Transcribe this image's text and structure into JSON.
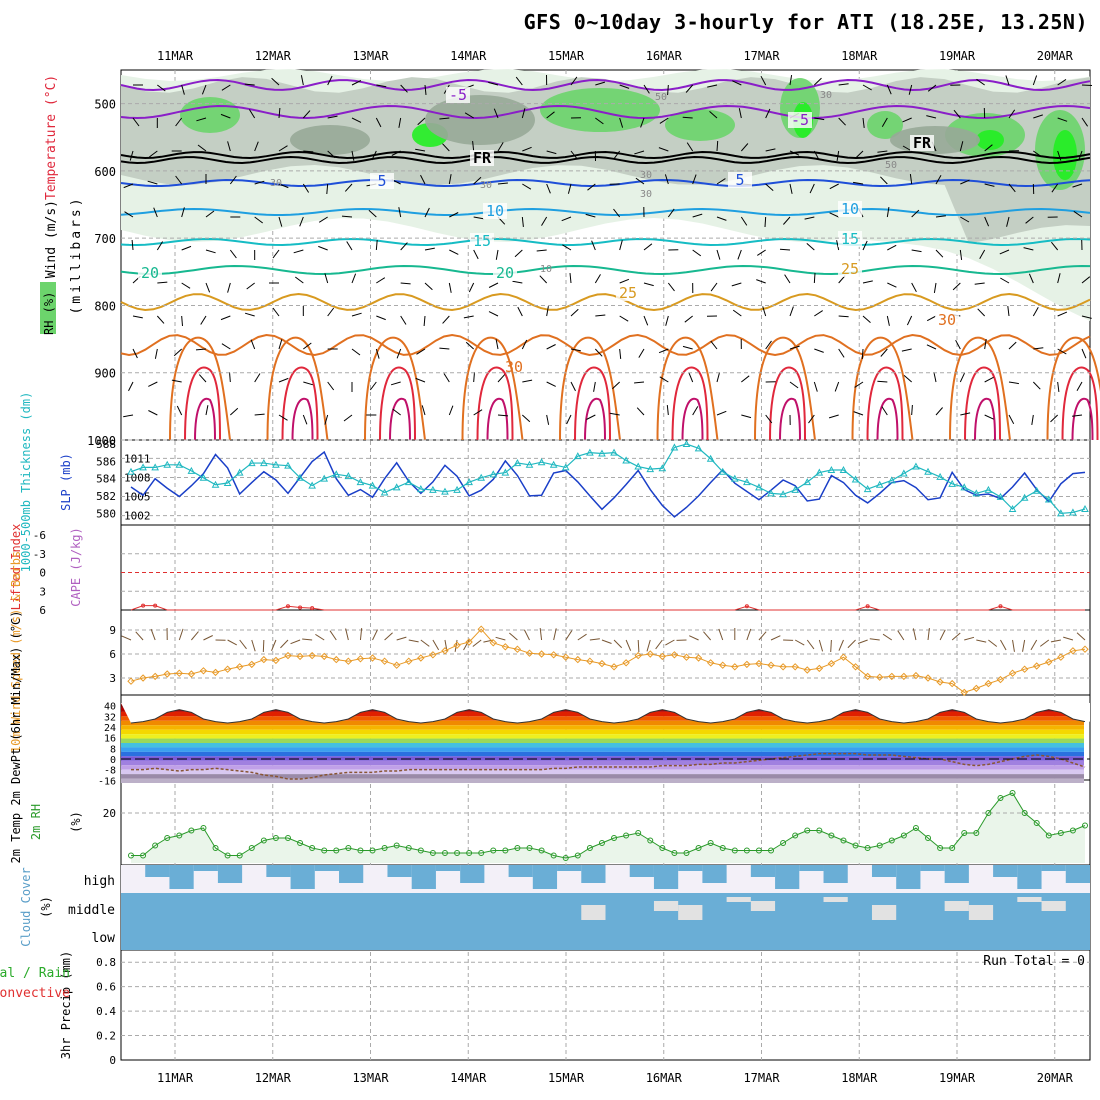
{
  "title": "GFS 0~10day 3-hourly for ATI (18.25E, 13.25N)",
  "colors": {
    "grid": "#aaaaaa",
    "rh_light": "#e6f2e6",
    "rh_mid": "#c4cfc4",
    "rh_dark": "#98a898",
    "rh_green": "#6cd46c",
    "rh_bright": "#22ee22",
    "temp_m5": "#8a1ec8",
    "temp_0": "#000000",
    "temp_5": "#1f4fd8",
    "temp_10": "#1f9fe0",
    "temp_15": "#16bcc4",
    "temp_20": "#17b890",
    "temp_25": "#d89a20",
    "temp_30": "#e07020",
    "temp_35": "#e0283c",
    "temp_40": "#c0106a",
    "slp": "#1a3fc8",
    "thickness": "#20b8c0",
    "lifted": "#e03030",
    "wind10": "#e89a28",
    "rh2m": "#2a9a2a",
    "rh2m_fill": "#eaf5ea",
    "cloud": "#6aaed6",
    "cloud_bg": "#f3f0f8"
  },
  "chart_data": [
    {
      "type": "contour",
      "name": "vertical_profile",
      "ylabel": "Wind (m/s)",
      "ylabel2": "Temperature (°C)",
      "ylabel3": "RH (%)",
      "ylabel4": "(millibars)",
      "y_ticks": [
        "500",
        "600",
        "700",
        "800",
        "900",
        "1000"
      ],
      "ylim": [
        450,
        1000
      ],
      "x_labels": [
        "11MAR",
        "12MAR",
        "13MAR",
        "14MAR",
        "15MAR",
        "16MAR",
        "17MAR",
        "18MAR",
        "19MAR",
        "20MAR"
      ],
      "contour_labels": [
        "-5",
        "-5",
        "FR",
        "FR",
        "5",
        "5",
        "10",
        "10",
        "15",
        "15",
        "20",
        "20",
        "25",
        "25",
        "30"
      ],
      "rh_labels": [
        "30",
        "30",
        "30",
        "30",
        "50",
        "50",
        "30",
        "10"
      ]
    },
    {
      "type": "line",
      "name": "slp_thickness",
      "ylabel_left": "1000-500mb Thickness (dm)",
      "ylabel_right": "SLP (mb)",
      "left_ticks": [
        "588",
        "586",
        "584",
        "582",
        "580"
      ],
      "right_ticks": [
        "1011",
        "1008",
        "1005",
        "1002"
      ],
      "series": [
        {
          "name": "SLP",
          "values": [
            1006.5,
            1005.2,
            1007.8,
            1006.3,
            1005.0,
            1006.7,
            1008.6,
            1011.6,
            1009.5,
            1005.4,
            1007.2,
            1008.9,
            1007.6,
            1005.5,
            1008.0,
            1010.5,
            1012.0,
            1007.8,
            1005.2,
            1006.1,
            1004.9,
            1007.8,
            1010.3,
            1007.4,
            1005.5,
            1007.3,
            1009.9,
            1008.2,
            1005.1,
            1006.0,
            1007.7,
            1010.6,
            1008.3,
            1005.1,
            1005.2,
            1008.7,
            1009.1,
            1007.3,
            1005.1,
            1003.0,
            1004.8,
            1006.9,
            1009.1,
            1006.1,
            1003.6,
            1001.8,
            1003.3,
            1005.1,
            1007.2,
            1009.2,
            1007.1,
            1005.8,
            1004.5,
            1006.0,
            1007.6,
            1006.7,
            1004.3,
            1004.6,
            1008.3,
            1007.2,
            1005.2,
            1004.0,
            1005.5,
            1007.2,
            1007.5,
            1006.4,
            1004.5,
            1004.8,
            1008.8,
            1006.1,
            1005.2,
            1005.4,
            1004.7,
            1006.5,
            1008.7,
            1006.1,
            1004.2,
            1007.0,
            1008.6,
            1008.8
          ]
        },
        {
          "name": "Thickness",
          "values": [
            584.8,
            585.3,
            585.3,
            585.6,
            585.6,
            584.9,
            584.1,
            583.3,
            583.5,
            584.7,
            585.8,
            585.8,
            585.6,
            585.5,
            584.1,
            583.2,
            584.0,
            584.5,
            584.3,
            583.6,
            583.2,
            582.4,
            583.0,
            583.6,
            582.8,
            582.7,
            582.5,
            582.7,
            583.6,
            584.1,
            584.5,
            584.7,
            585.8,
            585.6,
            585.9,
            585.6,
            585.3,
            586.6,
            587.0,
            586.9,
            587.0,
            586.1,
            585.4,
            585.1,
            585.2,
            587.6,
            588.0,
            587.5,
            586.3,
            584.8,
            584.0,
            583.6,
            583.0,
            582.3,
            582.2,
            582.7,
            583.6,
            584.7,
            585.0,
            585.0,
            583.9,
            582.8,
            583.3,
            583.8,
            584.6,
            585.4,
            584.8,
            584.2,
            583.4,
            583.0,
            582.3,
            582.7,
            581.9,
            580.5,
            581.8,
            582.6,
            581.6,
            580.0,
            580.1,
            580.5
          ]
        }
      ]
    },
    {
      "type": "line",
      "name": "cape_lifted",
      "ylabel_left": "Lifted Index",
      "ylabel_right": "CAPE (J/kg)",
      "y_ticks": [
        "-6",
        "-3",
        "0",
        "3",
        "6"
      ],
      "series": [
        {
          "name": "Lifted Index",
          "values": [
            6.0,
            5.3,
            5.3,
            6.0,
            6.0,
            6.0,
            6.0,
            6.0,
            6.0,
            6.0,
            6.0,
            6.0,
            6.0,
            5.4,
            5.6,
            5.7,
            6.0,
            6.0,
            6.0,
            6.0,
            6.0,
            6.0,
            6.0,
            6.0,
            6.0,
            6.0,
            6.0,
            6.0,
            6.0,
            6.0,
            6.0,
            6.0,
            6.0,
            6.0,
            6.0,
            6.0,
            6.0,
            6.0,
            6.0,
            6.0,
            6.0,
            6.0,
            6.0,
            6.0,
            6.0,
            6.0,
            6.0,
            6.0,
            6.0,
            6.0,
            6.0,
            5.4,
            6.0,
            6.0,
            6.0,
            6.0,
            6.0,
            6.0,
            6.0,
            6.0,
            6.0,
            5.4,
            6.0,
            6.0,
            6.0,
            6.0,
            6.0,
            6.0,
            6.0,
            6.0,
            6.0,
            6.0,
            5.4,
            6.0,
            6.0,
            6.0,
            6.0,
            6.0,
            6.0,
            6.0
          ]
        }
      ]
    },
    {
      "type": "line",
      "name": "wind10m",
      "ylabel": "10m Wind Speed (m/s) & Barbs",
      "y_ticks": [
        "9",
        "6",
        "3"
      ],
      "series": [
        {
          "name": "10m Wind Speed",
          "values": [
            2.6,
            3.0,
            3.2,
            3.5,
            3.6,
            3.5,
            3.9,
            3.7,
            4.1,
            4.4,
            4.7,
            5.3,
            5.2,
            5.8,
            5.7,
            5.8,
            5.7,
            5.3,
            5.1,
            5.4,
            5.5,
            5.1,
            4.6,
            5.1,
            5.5,
            5.9,
            6.4,
            7.1,
            7.5,
            9.1,
            7.4,
            6.9,
            6.6,
            6.1,
            6.0,
            5.9,
            5.6,
            5.3,
            5.1,
            4.8,
            4.4,
            4.9,
            5.8,
            6.0,
            5.7,
            5.9,
            5.6,
            5.5,
            4.9,
            4.6,
            4.4,
            4.7,
            4.8,
            4.6,
            4.4,
            4.4,
            4.0,
            4.2,
            4.8,
            5.6,
            4.4,
            3.2,
            3.1,
            3.2,
            3.2,
            3.3,
            3.0,
            2.5,
            2.3,
            1.2,
            1.7,
            2.3,
            2.8,
            3.6,
            4.1,
            4.5,
            5.0,
            5.6,
            6.4,
            6.6
          ]
        }
      ]
    },
    {
      "type": "area",
      "name": "temp2m",
      "ylabel": "2m Temp 2m DewPt (6hr Min/Max) (°C)",
      "y_ticks": [
        "40",
        "32",
        "24",
        "16",
        "8",
        "0",
        "-8",
        "-16"
      ],
      "series": [
        {
          "name": "2m Temp",
          "values": [
            27,
            28,
            30,
            35,
            37,
            35,
            30,
            28,
            27,
            28,
            30,
            35,
            37,
            35,
            30,
            28,
            27,
            28,
            30,
            35,
            37,
            35,
            30,
            28,
            27,
            28,
            30,
            35,
            37,
            35,
            30,
            28,
            27,
            28,
            30,
            35,
            37,
            35,
            30,
            28,
            27,
            28,
            30,
            35,
            37,
            35,
            30,
            28,
            27,
            28,
            30,
            35,
            37,
            35,
            30,
            28,
            27,
            28,
            30,
            35,
            37,
            35,
            30,
            28,
            27,
            28,
            30,
            35,
            37,
            35,
            30,
            28,
            27,
            28,
            30,
            35,
            37,
            35,
            30,
            28
          ]
        },
        {
          "name": "2m DewPt",
          "values": [
            -8,
            -8,
            -7,
            -8,
            -9,
            -8,
            -8,
            -7,
            -8,
            -9,
            -10,
            -12,
            -13,
            -15,
            -15,
            -14,
            -12,
            -11,
            -10,
            -10,
            -10,
            -9,
            -9,
            -8,
            -8,
            -8,
            -8,
            -8,
            -8,
            -8,
            -8,
            -8,
            -8,
            -8,
            -8,
            -7,
            -7,
            -6,
            -6,
            -6,
            -6,
            -6,
            -6,
            -6,
            -5,
            -5,
            -5,
            -4,
            -4,
            -3,
            -3,
            -2,
            -1,
            0,
            1,
            2,
            3,
            4,
            4,
            4,
            4,
            3,
            3,
            3,
            2,
            1,
            0,
            0,
            -2,
            -4,
            -5,
            -4,
            -2,
            0,
            2,
            3,
            2,
            0,
            -3,
            -6
          ]
        }
      ]
    },
    {
      "type": "area",
      "name": "rh2m",
      "ylabel": "2m RH",
      "ylabel2": "(%)",
      "y_ticks": [
        "20"
      ],
      "series": [
        {
          "name": "2m RH",
          "values": [
            3,
            3,
            7,
            10,
            11,
            13,
            14,
            6,
            3,
            3,
            6,
            9,
            10,
            10,
            8,
            6,
            5,
            5,
            6,
            5,
            5,
            6,
            7,
            6,
            5,
            4,
            4,
            4,
            4,
            4,
            5,
            5,
            6,
            6,
            5,
            3,
            2,
            3,
            6,
            8,
            10,
            11,
            12,
            9,
            6,
            4,
            4,
            6,
            8,
            6,
            5,
            5,
            5,
            5,
            8,
            11,
            13,
            13,
            11,
            9,
            7,
            6,
            7,
            9,
            11,
            14,
            10,
            6,
            6,
            12,
            12,
            20,
            26,
            28,
            20,
            16,
            11,
            12,
            13,
            15
          ]
        }
      ]
    },
    {
      "type": "heatmap",
      "name": "cloud_cover",
      "ylabel": "Cloud Cover",
      "ylabel2": "(%)",
      "row_labels": [
        "high",
        "middle",
        "low"
      ]
    },
    {
      "type": "bar",
      "name": "precip",
      "ylabel": "3hr Precip (mm)",
      "legend_green": "Total / Rain",
      "legend_red": "Convective",
      "y_ticks": [
        "0.8",
        "0.6",
        "0.4",
        "0.2",
        "0"
      ],
      "run_total": "Run Total = 0",
      "values": []
    }
  ]
}
